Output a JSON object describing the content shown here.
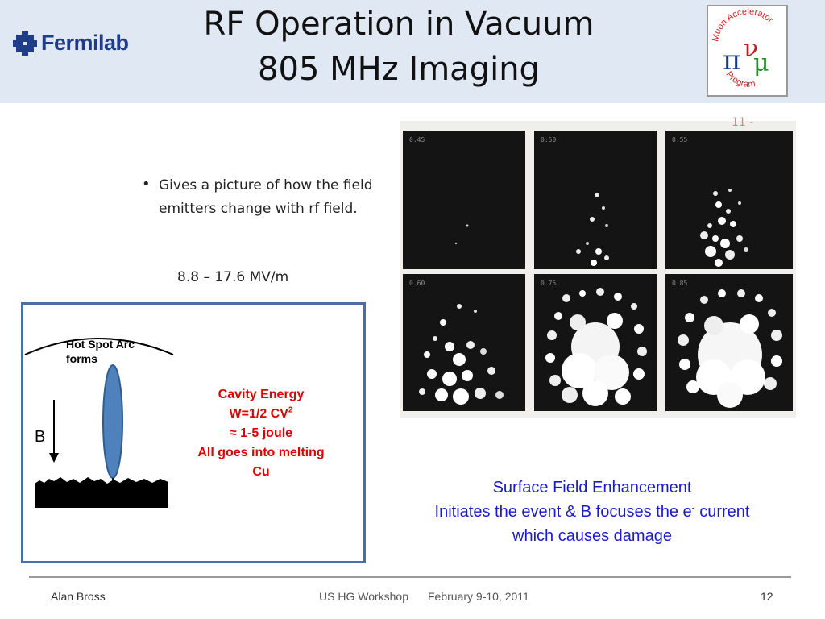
{
  "header": {
    "logo_text": "Fermilab",
    "title_line1": "RF Operation in Vacuum",
    "title_line2": "805 MHz Imaging",
    "map_logo": {
      "text": "Muon Accelerator Program",
      "symbols": [
        "π",
        "ν",
        "μ"
      ]
    }
  },
  "bullet": {
    "text": "Gives a picture of how the field emitters change with rf field.",
    "range": "8.8 – 17.6 MV/m"
  },
  "photos": {
    "corner_mark": "11   -",
    "panels": [
      {
        "label": "0.45"
      },
      {
        "label": "0.50"
      },
      {
        "label": "0.55"
      },
      {
        "label": "0.60"
      },
      {
        "label": "0.75"
      },
      {
        "label": "0.85"
      }
    ]
  },
  "diagram": {
    "hot_spot_label_1": "Hot Spot Arc",
    "hot_spot_label_2": "forms",
    "b_label": "B",
    "cavity_line1": "Cavity Energy",
    "cavity_line2_pre": "W=1/2 CV",
    "cavity_line2_sup": "2",
    "cavity_line3": "≈ 1-5 joule",
    "cavity_line4": "All goes into melting",
    "cavity_line5": "Cu"
  },
  "surface": {
    "line1": "Surface Field Enhancement",
    "line2_pre": "Initiates the event  & B focuses the e",
    "line2_sup": "-",
    "line2_post": " current",
    "line3": "which causes damage"
  },
  "footer": {
    "author": "Alan Bross",
    "event": "US HG Workshop",
    "date": "February 9-10, 2011",
    "page": "12"
  },
  "colors": {
    "header_bg": "#dfe8f3",
    "fermilab_blue": "#1f3c88",
    "diagram_border": "#4a6fa5",
    "cavity_red": "#e00000",
    "surface_blue": "#1a1ad0",
    "ellipse_blue": "#4f81bd"
  }
}
